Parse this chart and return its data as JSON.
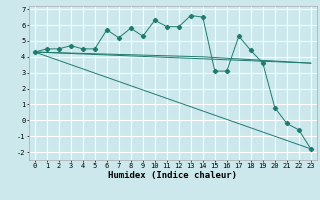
{
  "title": "",
  "xlabel": "Humidex (Indice chaleur)",
  "ylabel": "",
  "bg_color": "#cce8ec",
  "grid_color": "#ffffff",
  "line_color": "#1e7b6e",
  "series": [
    {
      "x": [
        0,
        1,
        2,
        3,
        4,
        5,
        6,
        7,
        8,
        9,
        10,
        11,
        12,
        13,
        14,
        15,
        16,
        17,
        18,
        19,
        20,
        21,
        22,
        23
      ],
      "y": [
        4.3,
        4.5,
        4.5,
        4.7,
        4.5,
        4.5,
        5.7,
        5.2,
        5.8,
        5.3,
        6.3,
        5.9,
        5.9,
        6.6,
        6.5,
        3.1,
        3.1,
        5.3,
        4.4,
        3.6,
        0.8,
        -0.2,
        -0.6,
        -1.8
      ],
      "marker": "D",
      "markersize": 2.2
    },
    {
      "x": [
        0,
        23
      ],
      "y": [
        4.3,
        -1.8
      ],
      "marker": null
    },
    {
      "x": [
        0,
        23
      ],
      "y": [
        4.3,
        3.6
      ],
      "marker": null
    },
    {
      "x": [
        0,
        14,
        23
      ],
      "y": [
        4.3,
        4.0,
        3.6
      ],
      "marker": null
    }
  ],
  "xlim": [
    -0.5,
    23.5
  ],
  "ylim": [
    -2.5,
    7.2
  ],
  "yticks": [
    -2,
    -1,
    0,
    1,
    2,
    3,
    4,
    5,
    6,
    7
  ],
  "xticks": [
    0,
    1,
    2,
    3,
    4,
    5,
    6,
    7,
    8,
    9,
    10,
    11,
    12,
    13,
    14,
    15,
    16,
    17,
    18,
    19,
    20,
    21,
    22,
    23
  ],
  "tick_fontsize": 5.0,
  "xlabel_fontsize": 6.5
}
